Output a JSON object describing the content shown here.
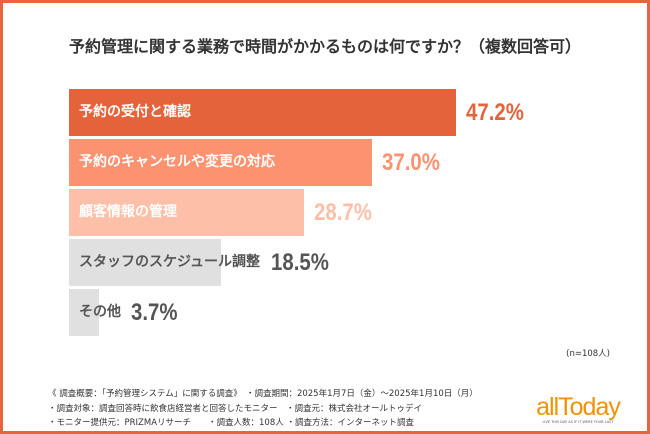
{
  "chart_data": {
    "type": "bar",
    "orientation": "horizontal",
    "title": "予約管理に関する業務で時間がかかるものは何ですか？（複数回答可）",
    "categories": [
      "予約の受付と確認",
      "予約のキャンセルや変更の対応",
      "顧客情報の管理",
      "スタッフのスケジュール調整",
      "その他"
    ],
    "values": [
      47.2,
      37.0,
      28.7,
      18.5,
      3.7
    ],
    "value_labels": [
      "47.2%",
      "37.0%",
      "28.7%",
      "18.5%",
      "3.7%"
    ],
    "bar_colors": [
      "#e5633a",
      "#fc9270",
      "#fdbfa8",
      "#e0e0e0",
      "#e0e0e0"
    ],
    "label_colors": [
      "#ffffff",
      "#ffffff",
      "#ffffff",
      "#555555",
      "#555555"
    ],
    "value_colors": [
      "#e5633a",
      "#fc9270",
      "#fdbfa8",
      "#555555",
      "#555555"
    ],
    "xlim": [
      0,
      50
    ],
    "grid": false,
    "legend": "none"
  },
  "sample_note": "(n=108人)",
  "notes": [
    "《 調査概要：「予約管理システム」に関する調査》　・調査期間：2025年1月7日（金）～2025年1月10日（月）",
    "・調査対象：調査回答時に飲食店経営者と回答したモニター　・調査元：株式会社オールトゥデイ",
    "・モニター提供元：PRIZMAリサーチ　　・調査人数：108人 ・調査方法：インターネット調査"
  ],
  "logo": {
    "text": "allToday",
    "tagline": "LIVE THIS DAY AS IF IT WERE YOUR LAST"
  },
  "frame_color": "#e8643a"
}
